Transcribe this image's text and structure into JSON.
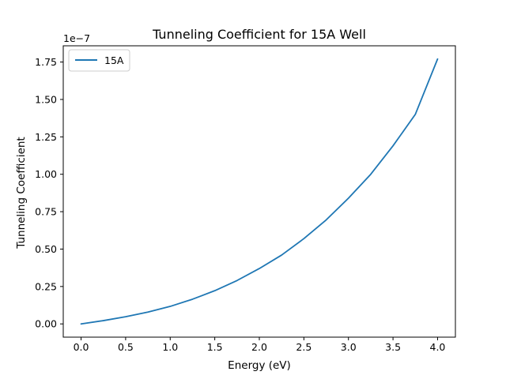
{
  "chart_data": {
    "type": "line",
    "title": "Tunneling Coefficient for 15A Well",
    "xlabel": "Energy (eV)",
    "ylabel": "Tunneling Coefficient",
    "y_offset_text": "1e−7",
    "xlim": [
      -0.2,
      4.2
    ],
    "ylim": [
      -0.0885,
      1.8585
    ],
    "x_ticks": [
      0.0,
      0.5,
      1.0,
      1.5,
      2.0,
      2.5,
      3.0,
      3.5,
      4.0
    ],
    "x_tick_labels": [
      "0.0",
      "0.5",
      "1.0",
      "1.5",
      "2.0",
      "2.5",
      "3.0",
      "3.5",
      "4.0"
    ],
    "y_ticks": [
      0.0,
      0.25,
      0.5,
      0.75,
      1.0,
      1.25,
      1.5,
      1.75
    ],
    "y_tick_labels": [
      "0.00",
      "0.25",
      "0.50",
      "0.75",
      "1.00",
      "1.25",
      "1.50",
      "1.75"
    ],
    "grid": false,
    "legend_position": "top-left",
    "series": [
      {
        "name": "15A",
        "color": "#1f77b4",
        "x": [
          0.0,
          0.25,
          0.5,
          0.75,
          1.0,
          1.25,
          1.5,
          1.75,
          2.0,
          2.25,
          2.5,
          2.75,
          3.0,
          3.25,
          3.5,
          3.75,
          4.0
        ],
        "y": [
          0.0,
          0.022,
          0.048,
          0.079,
          0.117,
          0.165,
          0.222,
          0.29,
          0.37,
          0.46,
          0.57,
          0.695,
          0.84,
          1.0,
          1.19,
          1.4,
          1.77
        ]
      }
    ]
  }
}
